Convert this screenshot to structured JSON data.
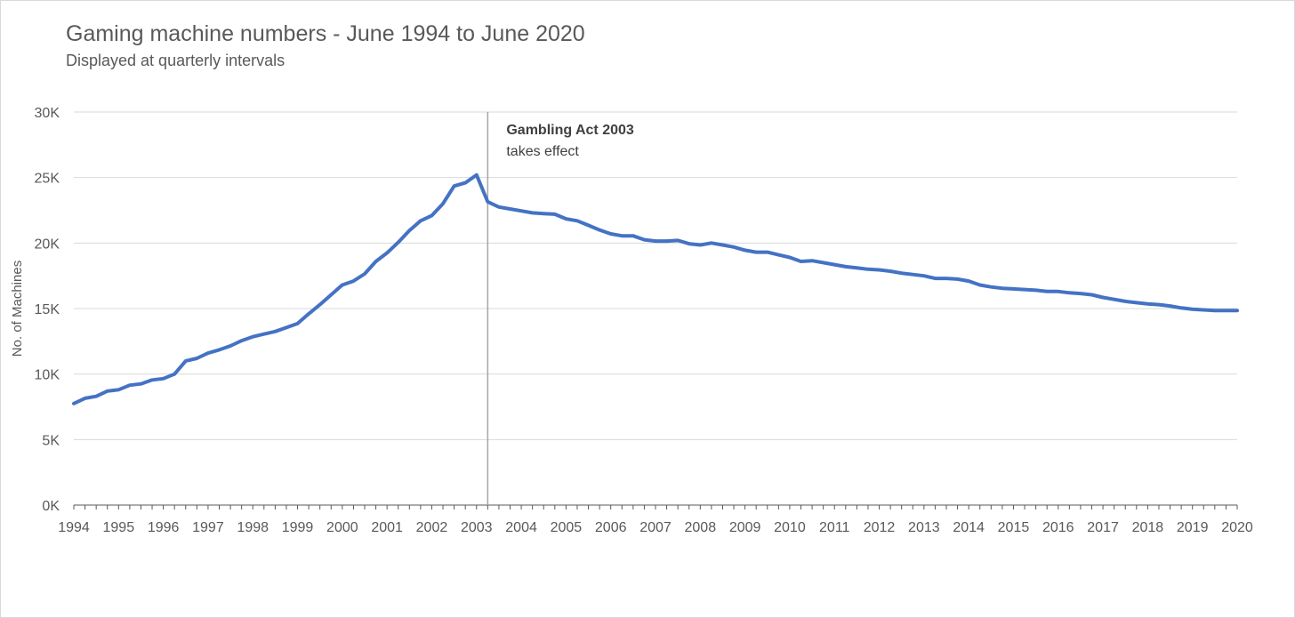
{
  "chart_data": {
    "type": "line",
    "title": "Gaming machine numbers - June 1994 to June 2020",
    "subtitle": "Displayed at quarterly intervals",
    "xlabel": "",
    "ylabel": "No. of Machines",
    "xlim": [
      1994,
      2020
    ],
    "ylim": [
      0,
      30000
    ],
    "y_ticks": [
      0,
      5000,
      10000,
      15000,
      20000,
      25000,
      30000
    ],
    "y_tick_labels": [
      "0K",
      "5K",
      "10K",
      "15K",
      "20K",
      "25K",
      "30K"
    ],
    "x_tick_labels": [
      "1994",
      "1995",
      "1996",
      "1997",
      "1998",
      "1999",
      "2000",
      "2001",
      "2002",
      "2003",
      "2004",
      "2005",
      "2006",
      "2007",
      "2008",
      "2009",
      "2010",
      "2011",
      "2012",
      "2013",
      "2014",
      "2015",
      "2016",
      "2017",
      "2018",
      "2019",
      "2020"
    ],
    "grid": true,
    "legend": "none",
    "color": "#4472C4",
    "annotation": {
      "x": 2003.25,
      "title": "Gambling Act 2003",
      "text": "takes effect"
    },
    "series": [
      {
        "x": [
          1994.0,
          1994.25,
          1994.5,
          1994.75,
          1995.0,
          1995.25,
          1995.5,
          1995.75,
          1996.0,
          1996.25,
          1996.5,
          1996.75,
          1997.0,
          1997.25,
          1997.5,
          1997.75,
          1998.0,
          1998.25,
          1998.5,
          1998.75,
          1999.0,
          1999.25,
          1999.5,
          1999.75,
          2000.0,
          2000.25,
          2000.5,
          2000.75,
          2001.0,
          2001.25,
          2001.5,
          2001.75,
          2002.0,
          2002.25,
          2002.5,
          2002.75,
          2003.0,
          2003.25,
          2003.5,
          2003.75,
          2004.0,
          2004.25,
          2004.5,
          2004.75,
          2005.0,
          2005.25,
          2005.5,
          2005.75,
          2006.0,
          2006.25,
          2006.5,
          2006.75,
          2007.0,
          2007.25,
          2007.5,
          2007.75,
          2008.0,
          2008.25,
          2008.5,
          2008.75,
          2009.0,
          2009.25,
          2009.5,
          2009.75,
          2010.0,
          2010.25,
          2010.5,
          2010.75,
          2011.0,
          2011.25,
          2011.5,
          2011.75,
          2012.0,
          2012.25,
          2012.5,
          2012.75,
          2013.0,
          2013.25,
          2013.5,
          2013.75,
          2014.0,
          2014.25,
          2014.5,
          2014.75,
          2015.0,
          2015.25,
          2015.5,
          2015.75,
          2016.0,
          2016.25,
          2016.5,
          2016.75,
          2017.0,
          2017.25,
          2017.5,
          2017.75,
          2018.0,
          2018.25,
          2018.5,
          2018.75,
          2019.0,
          2019.25,
          2019.5,
          2019.75,
          2020.0
        ],
        "values": [
          7750,
          8150,
          8300,
          8700,
          8800,
          9150,
          9250,
          9550,
          9650,
          10000,
          11000,
          11200,
          11600,
          11850,
          12150,
          12550,
          12850,
          13050,
          13250,
          13550,
          13850,
          14600,
          15300,
          16050,
          16800,
          17100,
          17650,
          18600,
          19250,
          20050,
          20950,
          21700,
          22100,
          23000,
          24350,
          24600,
          25200,
          23150,
          22750,
          22600,
          22450,
          22300,
          22250,
          22200,
          21850,
          21700,
          21350,
          21000,
          20700,
          20550,
          20550,
          20250,
          20150,
          20150,
          20200,
          19950,
          19850,
          20000,
          19850,
          19700,
          19450,
          19300,
          19300,
          19100,
          18900,
          18600,
          18650,
          18500,
          18350,
          18200,
          18100,
          18000,
          17950,
          17850,
          17700,
          17600,
          17500,
          17300,
          17300,
          17250,
          17100,
          16800,
          16650,
          16550,
          16500,
          16450,
          16400,
          16300,
          16300,
          16200,
          16150,
          16050,
          15850,
          15700,
          15550,
          15450,
          15350,
          15300,
          15200,
          15050,
          14950,
          14900,
          14850,
          14850,
          14850
        ]
      }
    ]
  }
}
